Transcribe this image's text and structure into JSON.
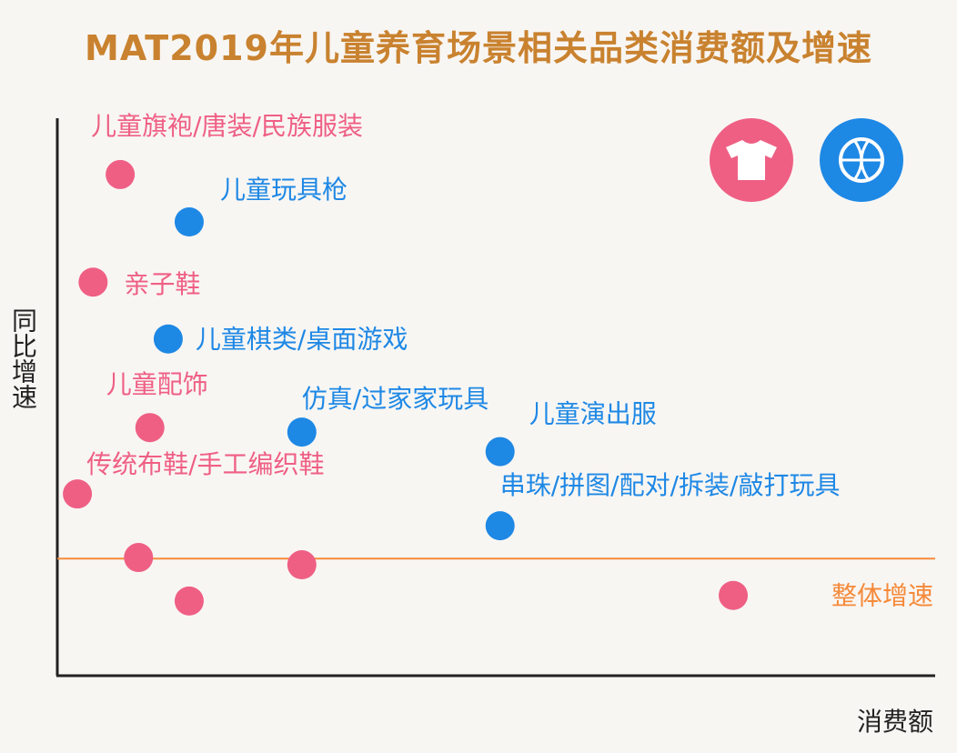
{
  "chart_data": {
    "type": "scatter",
    "title": "MAT2019年儿童养育场景相关品类消费额及增速",
    "xlabel": "消费额",
    "ylabel": "同比增速",
    "grid": false,
    "legend": {
      "placement": "top-right",
      "items": [
        {
          "icon": "tshirt-icon",
          "color": "#ef5f84"
        },
        {
          "icon": "basketball-icon",
          "color": "#1e88e5"
        }
      ]
    },
    "reference_line": {
      "label": "整体增速",
      "y": 21,
      "color": "#f58a3a"
    },
    "xlim": [
      0,
      100
    ],
    "ylim": [
      0,
      100
    ],
    "series": [
      {
        "color": "#ef5f84",
        "points": [
          {
            "x": 7.2,
            "y": 89.9,
            "label": "儿童旗袍/唐装/民族服装"
          },
          {
            "x": 4.1,
            "y": 70.6,
            "label": "亲子鞋"
          },
          {
            "x": 10.6,
            "y": 44.5,
            "label": "儿童配饰"
          },
          {
            "x": 2.3,
            "y": 32.6,
            "label": "传统布鞋/手工编织鞋"
          },
          {
            "x": 9.3,
            "y": 21.2,
            "label": ""
          },
          {
            "x": 15.1,
            "y": 13.4,
            "label": ""
          },
          {
            "x": 28.0,
            "y": 19.9,
            "label": ""
          },
          {
            "x": 77.4,
            "y": 14.4,
            "label": ""
          }
        ]
      },
      {
        "color": "#1e88e5",
        "points": [
          {
            "x": 15.1,
            "y": 81.4,
            "label": "儿童玩具枪"
          },
          {
            "x": 12.7,
            "y": 60.4,
            "label": "儿童棋类/桌面游戏"
          },
          {
            "x": 28.0,
            "y": 43.7,
            "label": "仿真/过家家玩具"
          },
          {
            "x": 50.7,
            "y": 40.2,
            "label": "儿童演出服"
          },
          {
            "x": 50.7,
            "y": 26.9,
            "label": "串珠/拼图/配对/拆装/敲打玩具"
          }
        ]
      }
    ]
  }
}
